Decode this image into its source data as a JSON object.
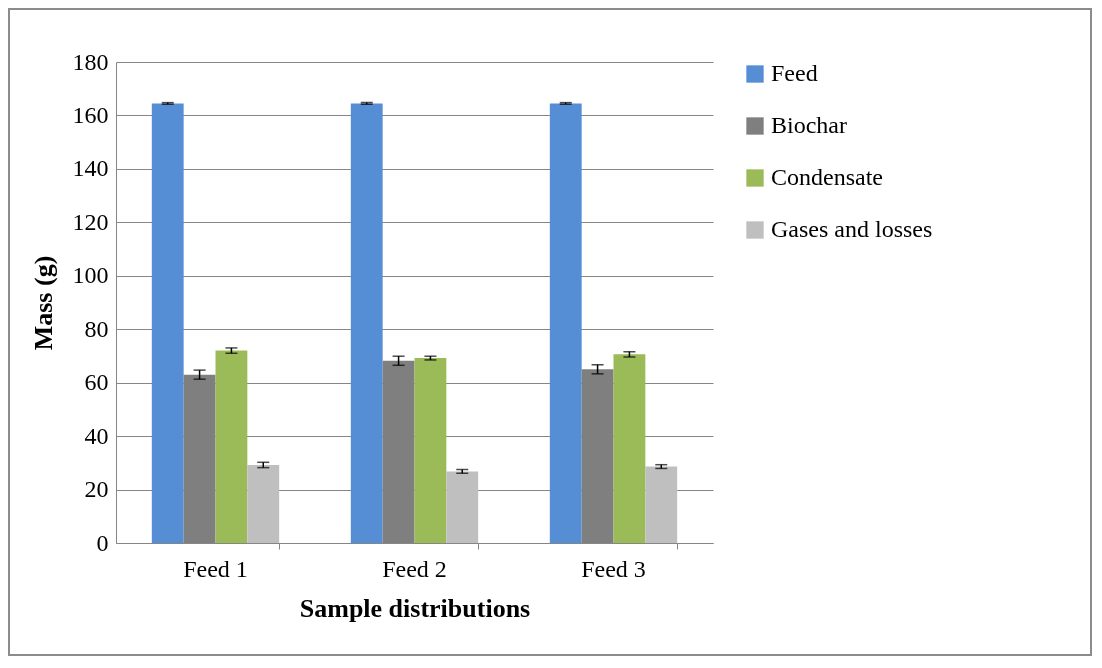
{
  "chart_data": {
    "type": "bar",
    "xlabel": "Sample distributions",
    "ylabel": "Mass (g)",
    "categories": [
      "Feed 1",
      "Feed 2",
      "Feed 3"
    ],
    "series": [
      {
        "name": "Feed",
        "color": "#558ed5",
        "values": [
          164.5,
          164.5,
          164.5
        ],
        "errors": [
          0.3,
          0.3,
          0.3
        ]
      },
      {
        "name": "Biochar",
        "color": "#7f7f7f",
        "values": [
          63,
          68.2,
          65
        ],
        "errors": [
          1.7,
          1.7,
          1.7
        ]
      },
      {
        "name": "Condensate",
        "color": "#9bbb59",
        "values": [
          72,
          69.2,
          70.6
        ],
        "errors": [
          1,
          0.7,
          1
        ]
      },
      {
        "name": "Gases and losses",
        "color": "#bfbfbf",
        "values": [
          29.2,
          26.8,
          28.6
        ],
        "errors": [
          1,
          0.7,
          0.7
        ]
      }
    ],
    "ylim": [
      0,
      180
    ],
    "yticks": [
      0,
      20,
      40,
      60,
      80,
      100,
      120,
      140,
      160,
      180
    ],
    "grid": "y",
    "legend": "right"
  }
}
